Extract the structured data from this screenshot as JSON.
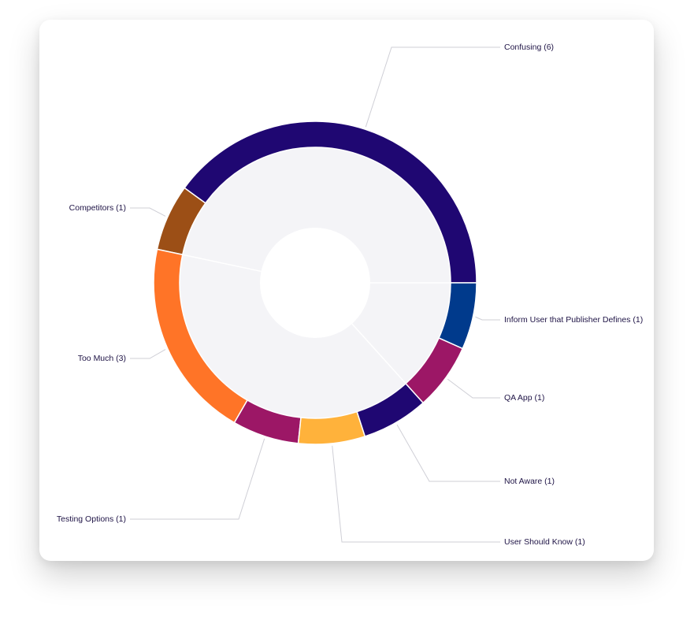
{
  "chart_data": {
    "type": "donut",
    "value_labels": [
      "Confusing (6)",
      "Competitors (1)",
      "Too Much (3)",
      "Testing Options (1)",
      "User Should Know (1)",
      "Not Aware (1)",
      "QA App (1)",
      "Inform User that Publisher Defines (1)"
    ],
    "values": [
      6,
      1,
      3,
      1,
      1,
      1,
      1,
      1
    ],
    "colors": [
      "#1f0772",
      "#9c4f16",
      "#ff7427",
      "#9c1766",
      "#ffb23b",
      "#1f0772",
      "#9c1766",
      "#003a8c"
    ]
  }
}
